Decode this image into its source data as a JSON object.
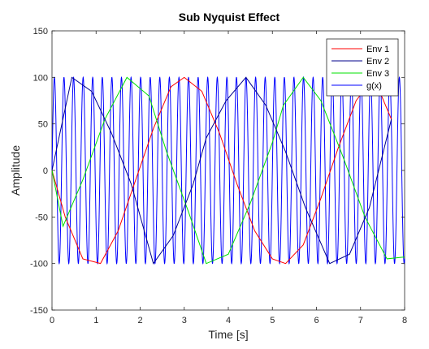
{
  "chart_data": {
    "type": "line",
    "title": "Sub Nyquist Effect",
    "xlabel": "Time [s]",
    "ylabel": "Amplitude",
    "xlim": [
      0,
      8
    ],
    "ylim": [
      -150,
      150
    ],
    "xticks": [
      "0",
      "1",
      "2",
      "3",
      "4",
      "5",
      "6",
      "7",
      "8"
    ],
    "yticks": [
      "-150",
      "-100",
      "-50",
      "0",
      "50",
      "100",
      "150"
    ],
    "grid": false,
    "legend_position": "top-right",
    "series": [
      {
        "name": "Env 1",
        "color": "#ff0000",
        "x": [
          0,
          0.3,
          0.7,
          1.1,
          1.5,
          1.9,
          2.3,
          2.7,
          3.0,
          3.4,
          3.8,
          4.2,
          4.6,
          5.0,
          5.3,
          5.7,
          6.1,
          6.5,
          6.9,
          7.3,
          7.7
        ],
        "y": [
          0,
          -50,
          -95,
          -100,
          -65,
          -10,
          45,
          90,
          100,
          85,
          40,
          -15,
          -65,
          -95,
          -100,
          -80,
          -30,
          25,
          75,
          100,
          55
        ]
      },
      {
        "name": "Env 2",
        "color": "#00008b",
        "x": [
          0,
          0.45,
          0.9,
          1.35,
          1.8,
          2.3,
          2.75,
          3.2,
          3.5,
          3.95,
          4.4,
          4.85,
          5.3,
          5.75,
          6.3,
          6.75,
          7.2,
          7.7
        ],
        "y": [
          0,
          100,
          85,
          40,
          -15,
          -100,
          -70,
          -15,
          35,
          75,
          100,
          70,
          20,
          -40,
          -100,
          -90,
          -40,
          55
        ]
      },
      {
        "name": "Env 3",
        "color": "#00e000",
        "x": [
          0,
          0.25,
          0.7,
          1.2,
          1.7,
          2.2,
          2.6,
          3.1,
          3.5,
          4.0,
          4.5,
          5.0,
          5.25,
          5.7,
          6.1,
          6.6,
          7.1,
          7.6,
          8.0
        ],
        "y": [
          0,
          -60,
          -10,
          55,
          100,
          80,
          20,
          -45,
          -100,
          -90,
          -35,
          30,
          70,
          100,
          75,
          15,
          -50,
          -95,
          -93
        ]
      },
      {
        "name": "g(x)",
        "color": "#0000ff",
        "frequency_hz": 4.6,
        "amplitude": 100,
        "x_range": [
          0,
          8
        ]
      }
    ]
  }
}
